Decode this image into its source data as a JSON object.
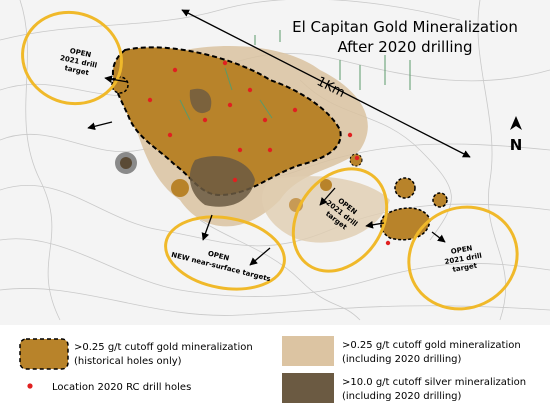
{
  "title": {
    "line1": "El Capitan Gold Mineralization",
    "line2": "After 2020 drilling"
  },
  "scale_label": "1Km",
  "north_label": "N",
  "targets": [
    {
      "lines": [
        "OPEN",
        "2021 drill",
        "target"
      ]
    },
    {
      "lines": [
        "OPEN",
        "NEW near-surface targets"
      ]
    },
    {
      "lines": [
        "OPEN",
        "2021 drill",
        "target"
      ]
    },
    {
      "lines": [
        "OPEN",
        "2021 drill",
        "target"
      ]
    }
  ],
  "legend": [
    {
      "lines": [
        ">0.25 g/t cutoff gold mineralization",
        "(historical holes only)"
      ]
    },
    {
      "lines": [
        "Location 2020 RC drill holes"
      ]
    },
    {
      "lines": [
        ">0.25 g/t cutoff gold mineralization",
        "(including 2020 drilling)"
      ]
    },
    {
      "lines": [
        ">10.0 g/t cutoff silver mineralization",
        "(including 2020 drilling)"
      ]
    }
  ]
}
